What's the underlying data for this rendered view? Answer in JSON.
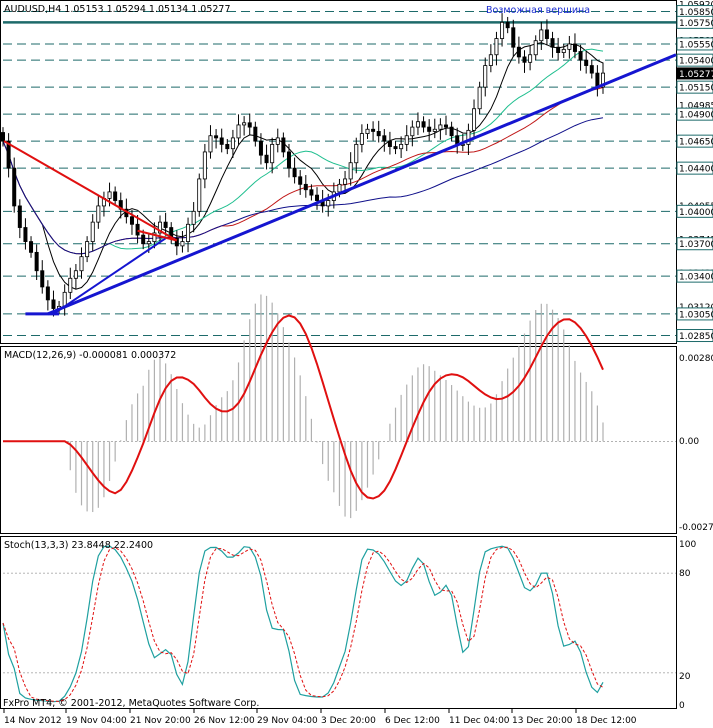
{
  "main_panel": {
    "header": "AUDUSD,H4  1.05153 1.05294 1.05134 1.05277",
    "annotation": "Возможная вершина",
    "price_labels": [
      "1.05920",
      "1.05850",
      "1.05750",
      "1.05585",
      "1.05550",
      "1.05400",
      "1.05277",
      "1.05150",
      "1.04985",
      "1.04900",
      "1.04650",
      "1.04400",
      "1.04055",
      "1.04000",
      "1.03745",
      "1.03700",
      "1.03435",
      "1.03400",
      "1.03120",
      "1.03050",
      "1.02850"
    ],
    "highlight_label": "1.05277",
    "boxed_labels": [
      "1.05850",
      "1.05750",
      "1.05550",
      "1.05400",
      "1.05150",
      "1.04900",
      "1.04650",
      "1.04400",
      "1.04000",
      "1.03700",
      "1.03400",
      "1.03050",
      "1.02850"
    ],
    "colors": {
      "bullish_trend": "#1515d0",
      "bearish_trend": "#e01010",
      "level_lines": "#1d6a6a",
      "candles": "#000000"
    }
  },
  "macd_panel": {
    "header": "MACD(12,26,9) -0.000081 0.000372",
    "scale": [
      "0.00280",
      "0.00",
      "-0.00272"
    ],
    "signal_color": "#e01010",
    "histogram_color": "#b0b0b0"
  },
  "stoch_panel": {
    "header": "Stoch(13,3,3) 23.8448 22.2400",
    "scale": [
      "100",
      "80",
      "20",
      "0"
    ],
    "main_color": "#1fa0a0",
    "signal_color": "#e01010"
  },
  "x_axis": [
    "14 Nov 2012",
    "19 Nov 04:00",
    "21 Nov 20:00",
    "26 Nov 12:00",
    "29 Nov 04:00",
    "3 Dec 20:00",
    "6 Dec 12:00",
    "11 Dec 04:00",
    "13 Dec 20:00",
    "18 Dec 12:00"
  ],
  "footer": "FxPro MT4, © 2001-2012, MetaQuotes Software Corp.",
  "chart_data": {
    "type": "line",
    "symbol": "AUDUSD",
    "timeframe": "H4",
    "ohlc_last": {
      "open": 1.05153,
      "high": 1.05294,
      "low": 1.05134,
      "close": 1.05277
    },
    "close_series": [
      1.0465,
      1.044,
      1.0405,
      1.0385,
      1.0372,
      1.0362,
      1.0345,
      1.033,
      1.0318,
      1.031,
      1.0312,
      1.0325,
      1.0338,
      1.0345,
      1.0358,
      1.0372,
      1.039,
      1.0405,
      1.0412,
      1.0418,
      1.041,
      1.0402,
      1.0395,
      1.0388,
      1.0378,
      1.037,
      1.0372,
      1.038,
      1.039,
      1.0385,
      1.0375,
      1.0368,
      1.0372,
      1.0388,
      1.04,
      1.043,
      1.0455,
      1.047,
      1.0468,
      1.0462,
      1.0458,
      1.0468,
      1.048,
      1.0482,
      1.0478,
      1.0465,
      1.0452,
      1.0445,
      1.0462,
      1.0468,
      1.0455,
      1.044,
      1.0432,
      1.0425,
      1.042,
      1.0415,
      1.041,
      1.0405,
      1.041,
      1.0418,
      1.0425,
      1.043,
      1.0445,
      1.0462,
      1.0472,
      1.0476,
      1.0474,
      1.047,
      1.0465,
      1.046,
      1.0458,
      1.0462,
      1.047,
      1.0478,
      1.0483,
      1.0478,
      1.0474,
      1.0476,
      1.048,
      1.0478,
      1.047,
      1.0462,
      1.0462,
      1.0475,
      1.0495,
      1.0515,
      1.0535,
      1.0545,
      1.056,
      1.0575,
      1.057,
      1.0552,
      1.0543,
      1.0538,
      1.0545,
      1.0558,
      1.0568,
      1.056,
      1.0552,
      1.0547,
      1.055,
      1.0555,
      1.0548,
      1.054,
      1.0535,
      1.0528,
      1.0515,
      1.0528
    ],
    "levels": [
      1.0585,
      1.0575,
      1.0555,
      1.054,
      1.0515,
      1.049,
      1.0465,
      1.044,
      1.04,
      1.037,
      1.034,
      1.0305,
      1.0285
    ],
    "ylim": [
      1.0279,
      1.0592
    ],
    "macd_ylim": [
      -0.00272,
      0.0028
    ],
    "stoch_ylim": [
      0,
      100
    ],
    "x_categories": [
      "14 Nov 2012",
      "19 Nov 04:00",
      "21 Nov 20:00",
      "26 Nov 12:00",
      "29 Nov 04:00",
      "3 Dec 20:00",
      "6 Dec 12:00",
      "11 Dec 04:00",
      "13 Dec 20:00",
      "18 Dec 12:00"
    ]
  }
}
